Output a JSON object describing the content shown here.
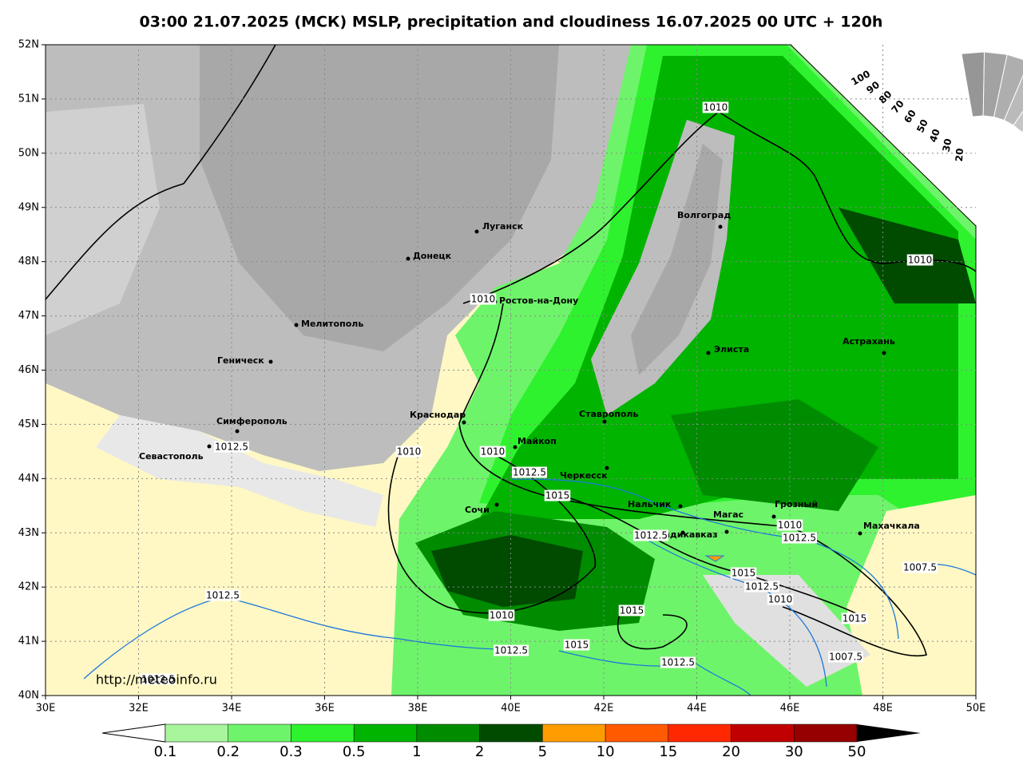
{
  "title": "03:00 21.07.2025 (МСК) MSLP, precipitation and cloudiness 16.07.2025 00 UTC + 120h",
  "lat_labels": [
    "52N",
    "51N",
    "50N",
    "49N",
    "48N",
    "47N",
    "46N",
    "45N",
    "44N",
    "43N",
    "42N",
    "41N",
    "40N"
  ],
  "lon_labels": [
    "30E",
    "32E",
    "34E",
    "36E",
    "38E",
    "40E",
    "42E",
    "44E",
    "46E",
    "48E",
    "50E"
  ],
  "cities": [
    "Луганск",
    "Донецк",
    "Волгоград",
    "Ростов-на-Дону",
    "Мелитополь",
    "Геническ",
    "Элиста",
    "Астрахань",
    "Краснодар",
    "Ставрополь",
    "Симферополь",
    "Севастополь",
    "Майкоп",
    "Черкесск",
    "Сочи",
    "Нальчик",
    "Магас",
    "Грозный",
    "Владикавказ",
    "Махачкала"
  ],
  "isobar_labels": [
    "1010",
    "1010",
    "1010",
    "1012.5",
    "1010",
    "1010",
    "1012.5",
    "1015",
    "1012.5",
    "1010",
    "1012.5",
    "1007.5",
    "1015",
    "1012.5",
    "1010",
    "1012.5",
    "1010",
    "1015",
    "1015",
    "1015",
    "1012.5",
    "1012.5",
    "1007.5",
    "1012.5"
  ],
  "colorbar_labels": [
    "0.1",
    "0.2",
    "0.3",
    "0.5",
    "1",
    "2",
    "5",
    "10",
    "15",
    "20",
    "30",
    "50"
  ],
  "cloud_labels": [
    "100",
    "90",
    "80",
    "70",
    "60",
    "50",
    "40",
    "30",
    "20"
  ],
  "source": "http://meteoinfo.ru"
}
